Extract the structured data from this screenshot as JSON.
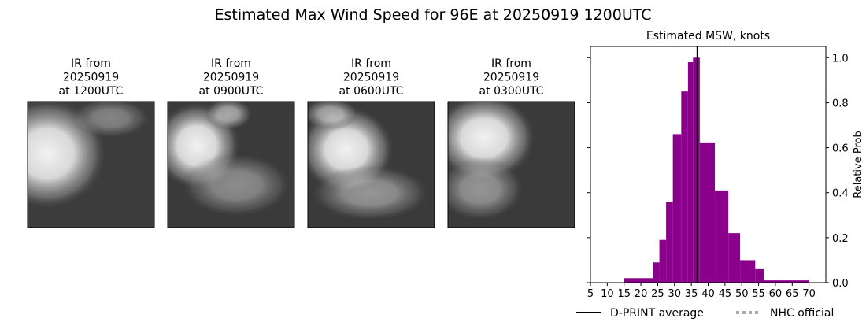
{
  "title": "Estimated Max Wind Speed for 96E at 20250919 1200UTC",
  "panels": [
    {
      "lines": [
        "IR from",
        "20250919",
        "at 1200UTC"
      ]
    },
    {
      "lines": [
        "IR from",
        "20250919",
        "at 0900UTC"
      ]
    },
    {
      "lines": [
        "IR from",
        "20250919",
        "at 0600UTC"
      ]
    },
    {
      "lines": [
        "IR from",
        "20250919",
        "at 0300UTC"
      ]
    }
  ],
  "chart_data": {
    "type": "histogram",
    "title": "Estimated MSW, knots",
    "y_label": "Relative Prob",
    "bins": [
      15,
      23.5,
      25.5,
      27.5,
      29.5,
      32,
      34,
      35.5,
      37.5,
      42,
      46,
      49.5,
      54,
      56.5,
      70
    ],
    "values": [
      0.02,
      0.09,
      0.19,
      0.36,
      0.66,
      0.85,
      0.98,
      1.0,
      0.62,
      0.41,
      0.22,
      0.1,
      0.06,
      0.01
    ],
    "color": "#8b008b",
    "xlim": [
      5,
      75
    ],
    "xticks": [
      5,
      10,
      15,
      20,
      25,
      30,
      35,
      40,
      45,
      50,
      55,
      60,
      65,
      70
    ],
    "ylim": [
      0,
      1.05
    ],
    "yticks": [
      {
        "value": 0,
        "label": "0.0"
      },
      0.2,
      0.4,
      0.6,
      0.8,
      {
        "value": 1,
        "label": "1.0"
      }
    ],
    "lines": [
      {
        "name": "D-PRINT average",
        "value": 36.8,
        "color": "#000000",
        "style": "solid"
      },
      {
        "name": "NHC official",
        "color": "#aaaaaa",
        "style": "dotted"
      }
    ]
  }
}
